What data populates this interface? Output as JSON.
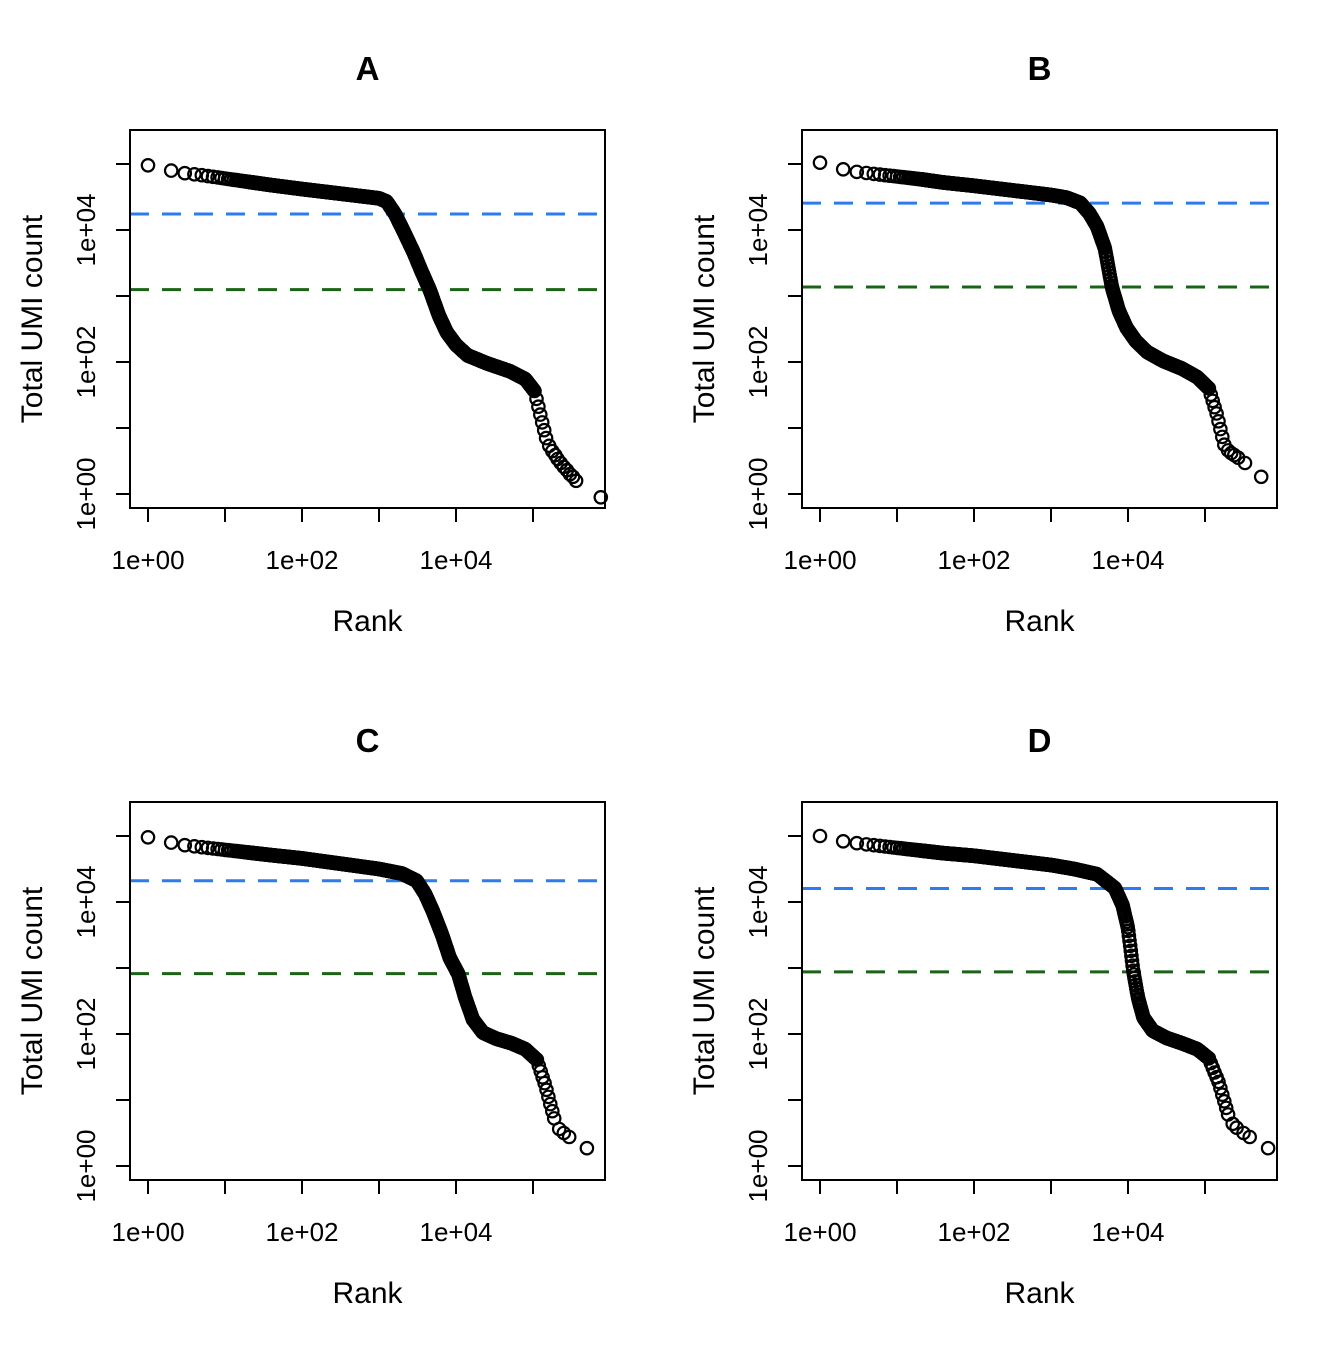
{
  "page": {
    "background": "#ffffff"
  },
  "colors": {
    "knee_line": "#2b7cee",
    "inflection_line": "#1a6317",
    "points": "#000000",
    "axis": "#000000"
  },
  "chart_data": {
    "type": "scatter",
    "log_scale": true,
    "x_axis": {
      "label": "Rank",
      "tick_logs": [
        0,
        1,
        2,
        3,
        4,
        5
      ],
      "labeled_tick_logs": [
        0,
        2,
        4
      ],
      "tick_label_texts": [
        "1e+00",
        "1e+02",
        "1e+04"
      ],
      "range_log10": [
        -0.234,
        5.935
      ]
    },
    "y_axis": {
      "label": "Total UMI count",
      "tick_logs": [
        0,
        1,
        2,
        3,
        4,
        5
      ],
      "labeled_tick_logs": [
        0,
        2,
        4
      ],
      "tick_label_texts": [
        "1e+00",
        "1e+02",
        "1e+04"
      ],
      "range_log10": [
        -0.212,
        5.515
      ]
    },
    "panels": [
      {
        "title": "A",
        "knee_count": 17500,
        "inflection_count": 1250,
        "max_rank": 760000,
        "max_count": 96000,
        "int_rank_end_log10": 1.28,
        "band_end_log10": 5.02,
        "chain_end_log10": 5.18,
        "curve_log10_anchors": [
          [
            0.0,
            4.98
          ],
          [
            0.3,
            4.9
          ],
          [
            0.48,
            4.86
          ],
          [
            0.7,
            4.83
          ],
          [
            1.0,
            4.78
          ],
          [
            1.3,
            4.73
          ],
          [
            1.6,
            4.68
          ],
          [
            2.0,
            4.62
          ],
          [
            2.5,
            4.55
          ],
          [
            3.0,
            4.48
          ],
          [
            3.1,
            4.43
          ],
          [
            3.21,
            4.24
          ],
          [
            3.32,
            3.98
          ],
          [
            3.45,
            3.66
          ],
          [
            3.55,
            3.38
          ],
          [
            3.66,
            3.09
          ],
          [
            3.78,
            2.7
          ],
          [
            3.88,
            2.45
          ],
          [
            4.0,
            2.26
          ],
          [
            4.15,
            2.1
          ],
          [
            4.4,
            1.98
          ],
          [
            4.7,
            1.86
          ],
          [
            4.9,
            1.74
          ],
          [
            5.02,
            1.56
          ],
          [
            5.1,
            1.18
          ],
          [
            5.18,
            0.8
          ]
        ],
        "tail_points_log10": [
          [
            5.21,
            0.73
          ],
          [
            5.25,
            0.65
          ],
          [
            5.29,
            0.59
          ],
          [
            5.32,
            0.53
          ],
          [
            5.36,
            0.47
          ],
          [
            5.4,
            0.41
          ],
          [
            5.44,
            0.36
          ],
          [
            5.48,
            0.3
          ],
          [
            5.52,
            0.26
          ],
          [
            5.56,
            0.2
          ],
          [
            5.88,
            -0.05
          ]
        ]
      },
      {
        "title": "B",
        "knee_count": 25500,
        "inflection_count": 1370,
        "max_rank": 540000,
        "max_count": 105000,
        "int_rank_end_log10": 1.28,
        "band_end_log10": 5.05,
        "chain_end_log10": 5.26,
        "curve_log10_anchors": [
          [
            0.0,
            5.02
          ],
          [
            0.3,
            4.92
          ],
          [
            0.48,
            4.88
          ],
          [
            0.7,
            4.85
          ],
          [
            1.0,
            4.81
          ],
          [
            1.3,
            4.77
          ],
          [
            1.6,
            4.72
          ],
          [
            2.0,
            4.67
          ],
          [
            2.5,
            4.6
          ],
          [
            3.0,
            4.53
          ],
          [
            3.2,
            4.49
          ],
          [
            3.38,
            4.41
          ],
          [
            3.5,
            4.25
          ],
          [
            3.6,
            4.05
          ],
          [
            3.7,
            3.72
          ],
          [
            3.79,
            3.14
          ],
          [
            3.88,
            2.78
          ],
          [
            3.98,
            2.52
          ],
          [
            4.1,
            2.32
          ],
          [
            4.25,
            2.15
          ],
          [
            4.45,
            2.02
          ],
          [
            4.7,
            1.9
          ],
          [
            4.9,
            1.77
          ],
          [
            5.05,
            1.6
          ],
          [
            5.15,
            1.22
          ],
          [
            5.26,
            0.7
          ]
        ],
        "tail_points_log10": [
          [
            5.3,
            0.66
          ],
          [
            5.34,
            0.62
          ],
          [
            5.38,
            0.59
          ],
          [
            5.43,
            0.55
          ],
          [
            5.52,
            0.47
          ],
          [
            5.73,
            0.26
          ]
        ]
      },
      {
        "title": "C",
        "knee_count": 21000,
        "inflection_count": 820,
        "max_rank": 500000,
        "max_count": 96000,
        "int_rank_end_log10": 1.28,
        "band_end_log10": 5.05,
        "chain_end_log10": 5.28,
        "curve_log10_anchors": [
          [
            0.0,
            4.98
          ],
          [
            0.3,
            4.9
          ],
          [
            0.48,
            4.86
          ],
          [
            0.7,
            4.83
          ],
          [
            1.0,
            4.79
          ],
          [
            1.3,
            4.75
          ],
          [
            1.6,
            4.71
          ],
          [
            2.0,
            4.66
          ],
          [
            2.5,
            4.58
          ],
          [
            3.0,
            4.5
          ],
          [
            3.3,
            4.43
          ],
          [
            3.49,
            4.32
          ],
          [
            3.6,
            4.12
          ],
          [
            3.7,
            3.86
          ],
          [
            3.82,
            3.5
          ],
          [
            3.92,
            3.15
          ],
          [
            4.03,
            2.91
          ],
          [
            4.12,
            2.55
          ],
          [
            4.22,
            2.22
          ],
          [
            4.35,
            2.02
          ],
          [
            4.52,
            1.93
          ],
          [
            4.72,
            1.86
          ],
          [
            4.9,
            1.77
          ],
          [
            5.05,
            1.61
          ],
          [
            5.16,
            1.22
          ],
          [
            5.28,
            0.7
          ]
        ],
        "tail_points_log10": [
          [
            5.34,
            0.56
          ],
          [
            5.4,
            0.5
          ],
          [
            5.47,
            0.44
          ],
          [
            5.7,
            0.27
          ]
        ]
      },
      {
        "title": "D",
        "knee_count": 16000,
        "inflection_count": 875,
        "max_rank": 660000,
        "max_count": 100000,
        "int_rank_end_log10": 1.28,
        "band_end_log10": 5.05,
        "chain_end_log10": 5.32,
        "curve_log10_anchors": [
          [
            0.0,
            5.0
          ],
          [
            0.3,
            4.92
          ],
          [
            0.48,
            4.89
          ],
          [
            0.7,
            4.86
          ],
          [
            1.0,
            4.82
          ],
          [
            1.3,
            4.78
          ],
          [
            1.6,
            4.74
          ],
          [
            2.0,
            4.7
          ],
          [
            2.5,
            4.63
          ],
          [
            3.0,
            4.56
          ],
          [
            3.3,
            4.5
          ],
          [
            3.6,
            4.42
          ],
          [
            3.83,
            4.21
          ],
          [
            3.93,
            3.95
          ],
          [
            4.0,
            3.6
          ],
          [
            4.07,
            2.94
          ],
          [
            4.13,
            2.55
          ],
          [
            4.2,
            2.25
          ],
          [
            4.32,
            2.05
          ],
          [
            4.5,
            1.94
          ],
          [
            4.7,
            1.86
          ],
          [
            4.9,
            1.77
          ],
          [
            5.05,
            1.63
          ],
          [
            5.18,
            1.26
          ],
          [
            5.32,
            0.7
          ]
        ],
        "tail_points_log10": [
          [
            5.36,
            0.64
          ],
          [
            5.41,
            0.58
          ],
          [
            5.5,
            0.5
          ],
          [
            5.58,
            0.44
          ],
          [
            5.82,
            0.27
          ]
        ]
      }
    ]
  }
}
